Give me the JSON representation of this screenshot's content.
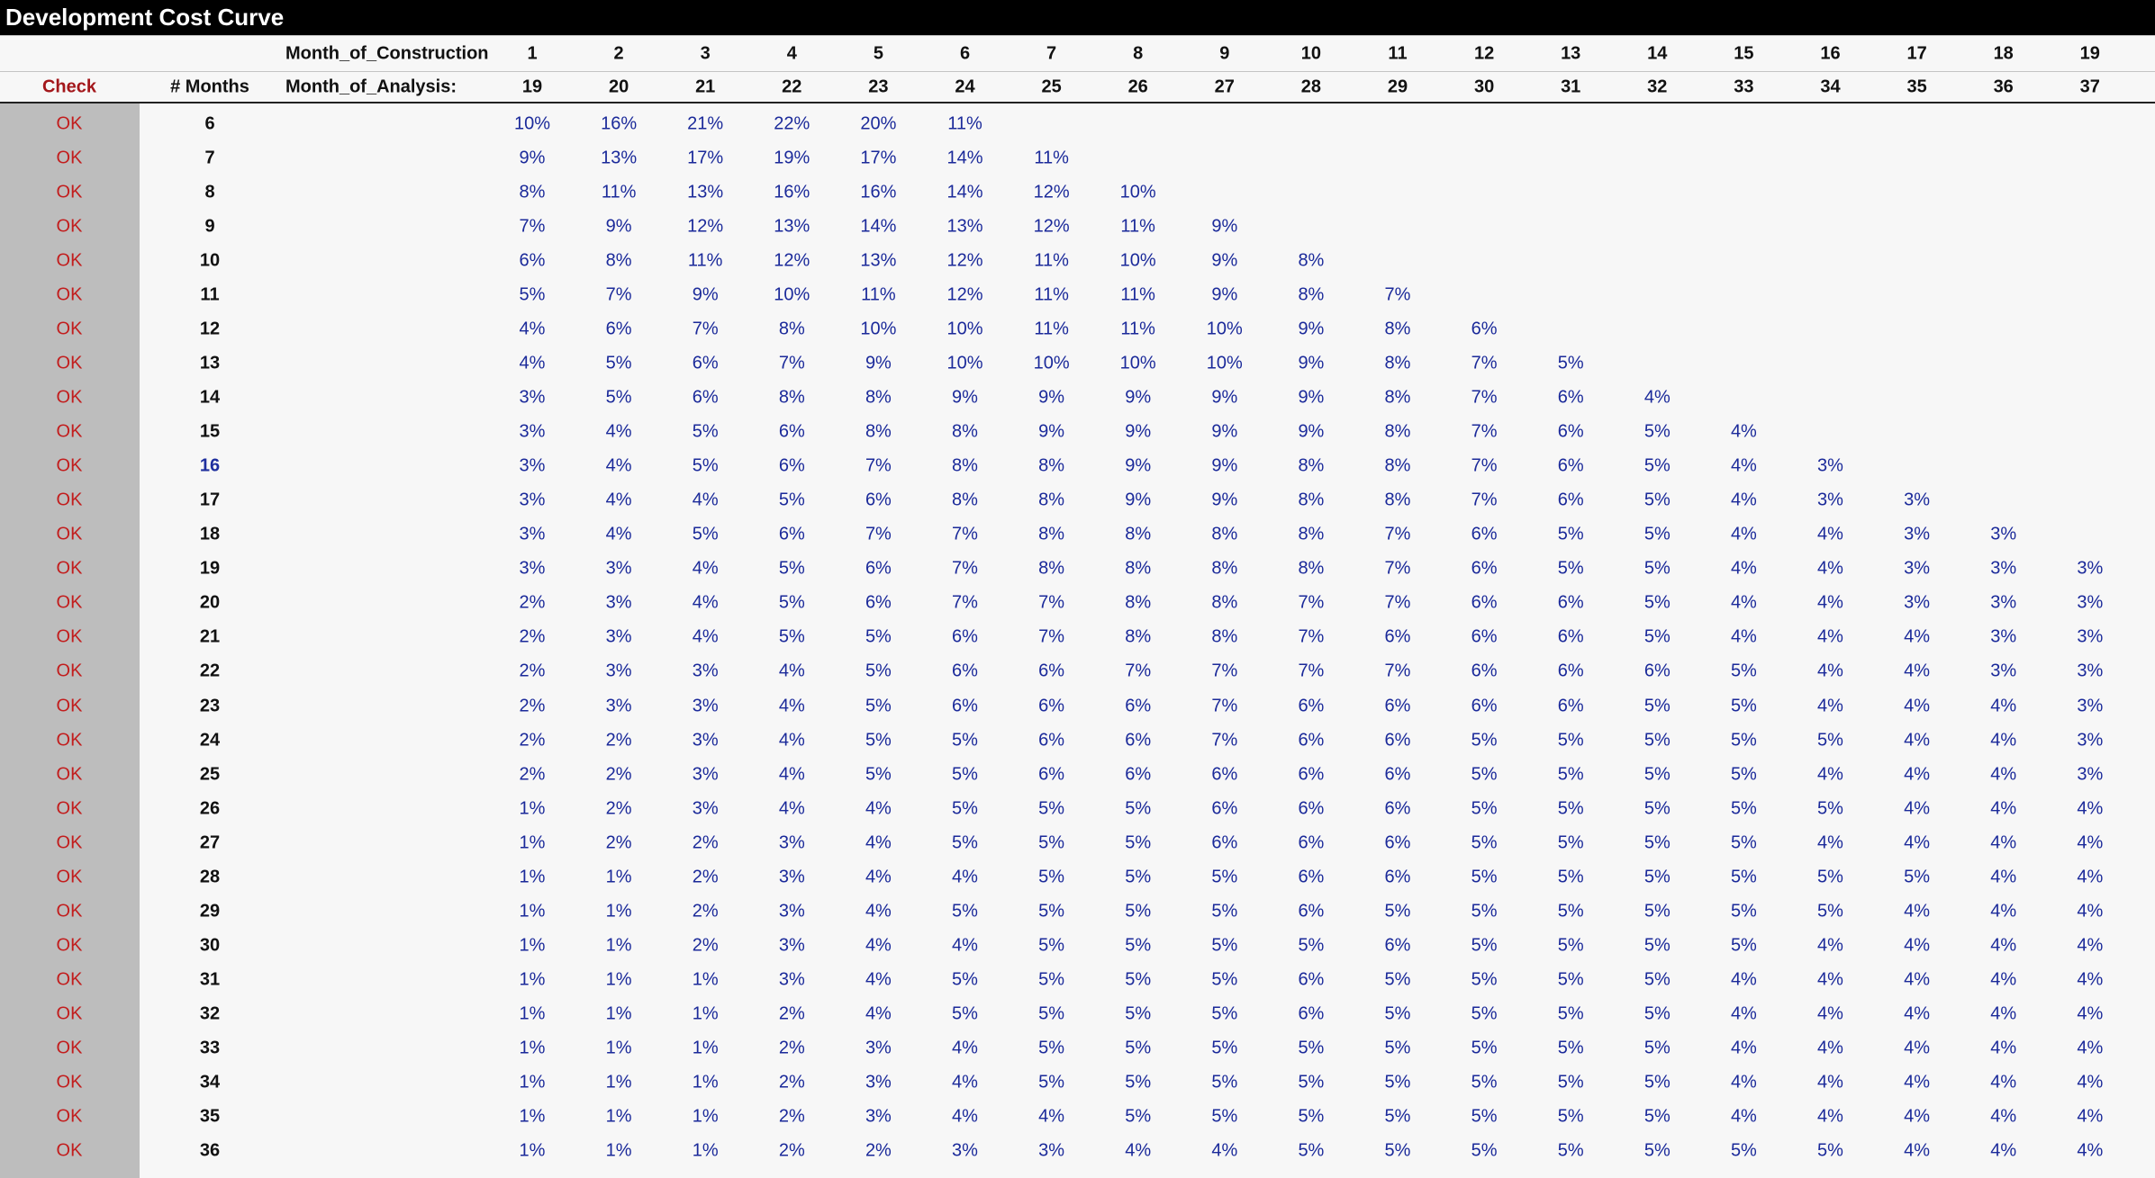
{
  "title": "Development Cost Curve",
  "header": {
    "check_label": "Check",
    "months_label": "# Months",
    "construction_label": "Month_of_Construction",
    "analysis_label": "Month_of_Analysis:",
    "construction_months": [
      "1",
      "2",
      "3",
      "4",
      "5",
      "6",
      "7",
      "8",
      "9",
      "10",
      "11",
      "12",
      "13",
      "14",
      "15",
      "16",
      "17",
      "18",
      "19"
    ],
    "analysis_months": [
      "19",
      "20",
      "21",
      "22",
      "23",
      "24",
      "25",
      "26",
      "27",
      "28",
      "29",
      "30",
      "31",
      "32",
      "33",
      "34",
      "35",
      "36",
      "37"
    ]
  },
  "colors": {
    "check_text": "#c21d1d",
    "percent_text": "#1b2a9a",
    "check_column_bg": "#bdbdbd",
    "title_bar": "#000000"
  },
  "rows": [
    {
      "check": "OK",
      "months": "6",
      "values": [
        "10%",
        "16%",
        "21%",
        "22%",
        "20%",
        "11%"
      ]
    },
    {
      "check": "OK",
      "months": "7",
      "values": [
        "9%",
        "13%",
        "17%",
        "19%",
        "17%",
        "14%",
        "11%"
      ]
    },
    {
      "check": "OK",
      "months": "8",
      "values": [
        "8%",
        "11%",
        "13%",
        "16%",
        "16%",
        "14%",
        "12%",
        "10%"
      ]
    },
    {
      "check": "OK",
      "months": "9",
      "values": [
        "7%",
        "9%",
        "12%",
        "13%",
        "14%",
        "13%",
        "12%",
        "11%",
        "9%"
      ]
    },
    {
      "check": "OK",
      "months": "10",
      "values": [
        "6%",
        "8%",
        "11%",
        "12%",
        "13%",
        "12%",
        "11%",
        "10%",
        "9%",
        "8%"
      ]
    },
    {
      "check": "OK",
      "months": "11",
      "values": [
        "5%",
        "7%",
        "9%",
        "10%",
        "11%",
        "12%",
        "11%",
        "11%",
        "9%",
        "8%",
        "7%"
      ]
    },
    {
      "check": "OK",
      "months": "12",
      "values": [
        "4%",
        "6%",
        "7%",
        "8%",
        "10%",
        "10%",
        "11%",
        "11%",
        "10%",
        "9%",
        "8%",
        "6%"
      ]
    },
    {
      "check": "OK",
      "months": "13",
      "values": [
        "4%",
        "5%",
        "6%",
        "7%",
        "9%",
        "10%",
        "10%",
        "10%",
        "10%",
        "9%",
        "8%",
        "7%",
        "5%"
      ]
    },
    {
      "check": "OK",
      "months": "14",
      "values": [
        "3%",
        "5%",
        "6%",
        "8%",
        "8%",
        "9%",
        "9%",
        "9%",
        "9%",
        "9%",
        "8%",
        "7%",
        "6%",
        "4%"
      ]
    },
    {
      "check": "OK",
      "months": "15",
      "values": [
        "3%",
        "4%",
        "5%",
        "6%",
        "8%",
        "8%",
        "9%",
        "9%",
        "9%",
        "9%",
        "8%",
        "7%",
        "6%",
        "5%",
        "4%"
      ]
    },
    {
      "check": "OK",
      "months": "16",
      "values": [
        "3%",
        "4%",
        "5%",
        "6%",
        "7%",
        "8%",
        "8%",
        "9%",
        "9%",
        "8%",
        "8%",
        "7%",
        "6%",
        "5%",
        "4%",
        "3%"
      ]
    },
    {
      "check": "OK",
      "months": "17",
      "values": [
        "3%",
        "4%",
        "4%",
        "5%",
        "6%",
        "8%",
        "8%",
        "9%",
        "9%",
        "8%",
        "8%",
        "7%",
        "6%",
        "5%",
        "4%",
        "3%",
        "3%"
      ]
    },
    {
      "check": "OK",
      "months": "18",
      "values": [
        "3%",
        "4%",
        "5%",
        "6%",
        "7%",
        "7%",
        "8%",
        "8%",
        "8%",
        "8%",
        "7%",
        "6%",
        "5%",
        "5%",
        "4%",
        "4%",
        "3%",
        "3%"
      ]
    },
    {
      "check": "OK",
      "months": "19",
      "values": [
        "3%",
        "3%",
        "4%",
        "5%",
        "6%",
        "7%",
        "8%",
        "8%",
        "8%",
        "8%",
        "7%",
        "6%",
        "5%",
        "5%",
        "4%",
        "4%",
        "3%",
        "3%",
        "3%"
      ]
    },
    {
      "check": "OK",
      "months": "20",
      "values": [
        "2%",
        "3%",
        "4%",
        "5%",
        "6%",
        "7%",
        "7%",
        "8%",
        "8%",
        "7%",
        "7%",
        "6%",
        "6%",
        "5%",
        "4%",
        "4%",
        "3%",
        "3%",
        "3%"
      ]
    },
    {
      "check": "OK",
      "months": "21",
      "values": [
        "2%",
        "3%",
        "4%",
        "5%",
        "5%",
        "6%",
        "7%",
        "8%",
        "8%",
        "7%",
        "6%",
        "6%",
        "6%",
        "5%",
        "4%",
        "4%",
        "4%",
        "3%",
        "3%"
      ]
    },
    {
      "check": "OK",
      "months": "22",
      "values": [
        "2%",
        "3%",
        "3%",
        "4%",
        "5%",
        "6%",
        "6%",
        "7%",
        "7%",
        "7%",
        "7%",
        "6%",
        "6%",
        "6%",
        "5%",
        "4%",
        "4%",
        "3%",
        "3%"
      ]
    },
    {
      "check": "OK",
      "months": "23",
      "values": [
        "2%",
        "3%",
        "3%",
        "4%",
        "5%",
        "6%",
        "6%",
        "6%",
        "7%",
        "6%",
        "6%",
        "6%",
        "6%",
        "5%",
        "5%",
        "4%",
        "4%",
        "4%",
        "3%"
      ]
    },
    {
      "check": "OK",
      "months": "24",
      "values": [
        "2%",
        "2%",
        "3%",
        "4%",
        "5%",
        "5%",
        "6%",
        "6%",
        "7%",
        "6%",
        "6%",
        "5%",
        "5%",
        "5%",
        "5%",
        "5%",
        "4%",
        "4%",
        "3%"
      ]
    },
    {
      "check": "OK",
      "months": "25",
      "values": [
        "2%",
        "2%",
        "3%",
        "4%",
        "5%",
        "5%",
        "6%",
        "6%",
        "6%",
        "6%",
        "6%",
        "5%",
        "5%",
        "5%",
        "5%",
        "4%",
        "4%",
        "4%",
        "3%"
      ]
    },
    {
      "check": "OK",
      "months": "26",
      "values": [
        "1%",
        "2%",
        "3%",
        "4%",
        "4%",
        "5%",
        "5%",
        "5%",
        "6%",
        "6%",
        "6%",
        "5%",
        "5%",
        "5%",
        "5%",
        "5%",
        "4%",
        "4%",
        "4%"
      ]
    },
    {
      "check": "OK",
      "months": "27",
      "values": [
        "1%",
        "2%",
        "2%",
        "3%",
        "4%",
        "5%",
        "5%",
        "5%",
        "6%",
        "6%",
        "6%",
        "5%",
        "5%",
        "5%",
        "5%",
        "4%",
        "4%",
        "4%",
        "4%"
      ]
    },
    {
      "check": "OK",
      "months": "28",
      "values": [
        "1%",
        "1%",
        "2%",
        "3%",
        "4%",
        "4%",
        "5%",
        "5%",
        "5%",
        "6%",
        "6%",
        "5%",
        "5%",
        "5%",
        "5%",
        "5%",
        "5%",
        "4%",
        "4%"
      ]
    },
    {
      "check": "OK",
      "months": "29",
      "values": [
        "1%",
        "1%",
        "2%",
        "3%",
        "4%",
        "5%",
        "5%",
        "5%",
        "5%",
        "6%",
        "5%",
        "5%",
        "5%",
        "5%",
        "5%",
        "5%",
        "4%",
        "4%",
        "4%"
      ]
    },
    {
      "check": "OK",
      "months": "30",
      "values": [
        "1%",
        "1%",
        "2%",
        "3%",
        "4%",
        "4%",
        "5%",
        "5%",
        "5%",
        "5%",
        "6%",
        "5%",
        "5%",
        "5%",
        "5%",
        "4%",
        "4%",
        "4%",
        "4%"
      ]
    },
    {
      "check": "OK",
      "months": "31",
      "values": [
        "1%",
        "1%",
        "1%",
        "3%",
        "4%",
        "5%",
        "5%",
        "5%",
        "5%",
        "6%",
        "5%",
        "5%",
        "5%",
        "5%",
        "4%",
        "4%",
        "4%",
        "4%",
        "4%"
      ]
    },
    {
      "check": "OK",
      "months": "32",
      "values": [
        "1%",
        "1%",
        "1%",
        "2%",
        "4%",
        "5%",
        "5%",
        "5%",
        "5%",
        "6%",
        "5%",
        "5%",
        "5%",
        "5%",
        "4%",
        "4%",
        "4%",
        "4%",
        "4%"
      ]
    },
    {
      "check": "OK",
      "months": "33",
      "values": [
        "1%",
        "1%",
        "1%",
        "2%",
        "3%",
        "4%",
        "5%",
        "5%",
        "5%",
        "5%",
        "5%",
        "5%",
        "5%",
        "5%",
        "4%",
        "4%",
        "4%",
        "4%",
        "4%"
      ]
    },
    {
      "check": "OK",
      "months": "34",
      "values": [
        "1%",
        "1%",
        "1%",
        "2%",
        "3%",
        "4%",
        "5%",
        "5%",
        "5%",
        "5%",
        "5%",
        "5%",
        "5%",
        "5%",
        "4%",
        "4%",
        "4%",
        "4%",
        "4%"
      ]
    },
    {
      "check": "OK",
      "months": "35",
      "values": [
        "1%",
        "1%",
        "1%",
        "2%",
        "3%",
        "4%",
        "4%",
        "5%",
        "5%",
        "5%",
        "5%",
        "5%",
        "5%",
        "5%",
        "4%",
        "4%",
        "4%",
        "4%",
        "4%"
      ]
    },
    {
      "check": "OK",
      "months": "36",
      "values": [
        "1%",
        "1%",
        "1%",
        "2%",
        "2%",
        "3%",
        "3%",
        "4%",
        "4%",
        "5%",
        "5%",
        "5%",
        "5%",
        "5%",
        "5%",
        "5%",
        "4%",
        "4%",
        "4%"
      ]
    }
  ]
}
